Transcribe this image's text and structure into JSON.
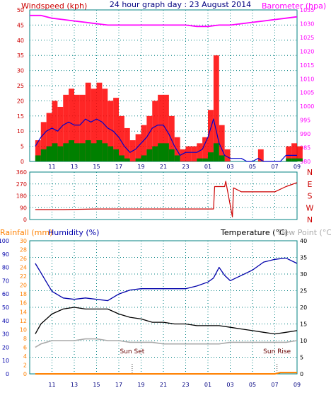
{
  "header": {
    "windspeed_label": "Windspeed (kph)",
    "title": "24 hour graph day : 23 August 2014",
    "barometer_label": "Barometer (hpa)",
    "rainfall_label": "Rainfall (mm)",
    "humidity_label": "Humidity (%)",
    "temperature_label": "Temperature (°C)",
    "dewpoint_label": "Dew Point (°C)",
    "sunset_label": "Sun Set",
    "sunrise_label": "Sun Rise"
  },
  "colors": {
    "wind_avg": "#0000cc",
    "wind_gust": "#ff0000",
    "wind_calm": "#008000",
    "barometer": "#ff00ff",
    "direction": "#cc0000",
    "rainfall": "#ff8000",
    "humidity": "#0000aa",
    "temperature": "#000000",
    "dewpoint": "#aaaaaa",
    "grid": "#008080",
    "left_axis": "#cc0000",
    "right_axis_baro": "#ff00ff",
    "lower_left_axis": "#0000aa",
    "rain_axis": "#ff8000"
  },
  "chart_data": [
    {
      "type": "line",
      "title": "24 hour graph day : 23 August 2014",
      "x_tick_labels": [
        "11",
        "13",
        "15",
        "17",
        "19",
        "21",
        "23",
        "01",
        "03",
        "05",
        "07",
        "09"
      ],
      "y_left_label": "Windspeed (kph)",
      "y_left_ticks": [
        0,
        5,
        10,
        15,
        20,
        25,
        30,
        35,
        40,
        45,
        50
      ],
      "y_left_range": [
        0,
        50
      ],
      "y_right_label": "Barometer (hpa)",
      "y_right_ticks": [
        980,
        985,
        990,
        995,
        1000,
        1005,
        1010,
        1015,
        1020,
        1025,
        1030,
        1035
      ],
      "y_right_range": [
        980,
        1035
      ],
      "grid": true,
      "series": [
        {
          "name": "Windspeed (kph)",
          "hours": [
            9.5,
            10,
            10.5,
            11,
            11.5,
            12,
            12.5,
            13,
            13.5,
            14,
            14.5,
            15,
            15.5,
            16,
            16.5,
            17,
            17.5,
            18,
            18.5,
            19,
            19.5,
            20,
            20.5,
            21,
            21.5,
            22,
            22.5,
            23,
            23.5,
            24,
            24.5,
            25,
            25.5,
            26,
            26.5,
            27,
            27.5,
            28,
            28.5,
            29,
            29.5,
            30,
            30.5,
            31,
            31.5,
            32,
            32.5,
            33
          ],
          "values": [
            7,
            13,
            16,
            20,
            18,
            22,
            24,
            22,
            22,
            26,
            24,
            26,
            24,
            20,
            21,
            15,
            11,
            7,
            9,
            12,
            15,
            20,
            22,
            22,
            15,
            8,
            4,
            5,
            5,
            6,
            8,
            17,
            35,
            12,
            4,
            0,
            0,
            0,
            0,
            0,
            4,
            0,
            0,
            0,
            0,
            5,
            6,
            5
          ]
        },
        {
          "name": "avg",
          "hours": [
            9.5,
            10,
            10.5,
            11,
            11.5,
            12,
            12.5,
            13,
            13.5,
            14,
            14.5,
            15,
            15.5,
            16,
            16.5,
            17,
            17.5,
            18,
            18.5,
            19,
            19.5,
            20,
            20.5,
            21,
            21.5,
            22,
            22.5,
            23,
            23.5,
            24,
            24.5,
            25,
            25.5,
            26,
            26.5,
            27,
            27.5,
            28,
            28.5,
            29,
            29.5,
            30,
            30.5,
            31,
            31.5,
            32,
            32.5,
            33
          ],
          "values": [
            5,
            8,
            10,
            11,
            10,
            12,
            13,
            12,
            12,
            14,
            13,
            14,
            13,
            11,
            10,
            8,
            5,
            3,
            4,
            6,
            8,
            11,
            12,
            12,
            9,
            5,
            2,
            3,
            3,
            3,
            4,
            8,
            14,
            6,
            2,
            1,
            1,
            1,
            0,
            0,
            1,
            0,
            0,
            0,
            0,
            2,
            2,
            2
          ]
        },
        {
          "name": "green",
          "hours": [
            9.5,
            10,
            10.5,
            11,
            11.5,
            12,
            12.5,
            13,
            13.5,
            14,
            14.5,
            15,
            15.5,
            16,
            16.5,
            17,
            17.5,
            18,
            18.5,
            19,
            19.5,
            20,
            20.5,
            21,
            21.5,
            22,
            22.5,
            23,
            23.5,
            24,
            24.5,
            25,
            25.5,
            26,
            26.5,
            27,
            27.5,
            28,
            28.5,
            29,
            29.5,
            30,
            30.5,
            31,
            31.5,
            32,
            32.5,
            33
          ],
          "values": [
            2,
            4,
            5,
            6,
            5,
            6,
            7,
            6,
            6,
            7,
            6,
            7,
            6,
            5,
            4,
            2,
            1,
            0,
            1,
            2,
            4,
            5,
            6,
            6,
            4,
            2,
            0,
            0,
            0,
            1,
            1,
            3,
            6,
            2,
            0,
            0,
            0,
            0,
            0,
            0,
            0,
            0,
            0,
            0,
            0,
            1,
            1,
            1
          ]
        },
        {
          "name": "Barometer (hpa)",
          "hours": [
            9,
            10,
            11,
            12,
            13,
            14,
            15,
            16,
            17,
            18,
            19,
            20,
            21,
            22,
            23,
            24,
            25,
            26,
            27,
            28,
            29,
            30,
            31,
            32,
            33
          ],
          "values": [
            1033,
            1033,
            1032,
            1031.5,
            1031,
            1030.5,
            1030,
            1029.5,
            1029.5,
            1029.5,
            1029.5,
            1029.5,
            1029.5,
            1029.5,
            1029.5,
            1029,
            1029,
            1029.5,
            1029.5,
            1030,
            1030.5,
            1031,
            1031.5,
            1032,
            1032.5
          ]
        }
      ]
    },
    {
      "type": "line",
      "x_tick_labels": [],
      "y_left_ticks": [
        0,
        90,
        180,
        270,
        360
      ],
      "y_left_range": [
        0,
        360
      ],
      "y_right_labels": [
        "N",
        "W",
        "S",
        "E",
        "N"
      ],
      "grid": true,
      "series": [
        {
          "name": "Wind direction",
          "hours": [
            9.5,
            12,
            15,
            18,
            21,
            24,
            25.5,
            25.6,
            26.5,
            26.6,
            27.2,
            27.3,
            28,
            29,
            30,
            31,
            32,
            33
          ],
          "values": [
            75,
            75,
            80,
            80,
            80,
            80,
            80,
            250,
            250,
            290,
            20,
            240,
            210,
            210,
            210,
            210,
            250,
            280
          ]
        }
      ]
    },
    {
      "type": "line",
      "x_tick_labels": [
        "11",
        "13",
        "15",
        "17",
        "19",
        "21",
        "23",
        "01",
        "03",
        "05",
        "07",
        "09"
      ],
      "y_left_label": "Humidity (%)",
      "y_left_ticks": [
        0,
        10,
        20,
        30,
        40,
        50,
        60,
        70,
        80,
        90,
        100
      ],
      "y_left_range": [
        0,
        100
      ],
      "y_rain_label": "Rainfall (mm)",
      "y_rain_ticks": [
        0,
        2,
        4,
        6,
        8,
        10,
        12,
        14,
        16,
        18,
        20,
        22,
        24,
        26,
        28,
        30
      ],
      "y_right_label": "Temperature (°C)",
      "y_right_ticks": [
        0,
        5,
        10,
        15,
        20,
        25,
        30,
        35,
        40
      ],
      "y_right_range": [
        0,
        40
      ],
      "annotations": [
        "Sun Set",
        "Sun Rise"
      ],
      "grid": true,
      "series": [
        {
          "name": "Humidity (%)",
          "hours": [
            9.5,
            10,
            10.5,
            11,
            12,
            13,
            14,
            15,
            16,
            17,
            18,
            19,
            20,
            21,
            22,
            23,
            24,
            25,
            25.5,
            26,
            26.5,
            27,
            28,
            29,
            30,
            31,
            32,
            33
          ],
          "values": [
            83,
            76,
            69,
            62,
            57,
            56,
            57,
            56,
            55,
            60,
            63,
            64,
            64,
            64,
            64,
            64,
            66,
            69,
            72,
            80,
            74,
            70,
            74,
            78,
            84,
            86,
            87,
            83
          ]
        },
        {
          "name": "Temperature (°C)",
          "hours": [
            9.5,
            10,
            11,
            12,
            13,
            14,
            15,
            16,
            17,
            18,
            19,
            20,
            21,
            22,
            23,
            24,
            25,
            26,
            27,
            28,
            29,
            30,
            31,
            32,
            33
          ],
          "values": [
            12,
            15,
            18,
            19.5,
            20,
            19.5,
            19.5,
            19.5,
            18,
            17,
            16.5,
            15.5,
            15.5,
            15,
            15,
            14.5,
            14.5,
            14.5,
            14,
            13.5,
            13,
            12.5,
            12,
            12.5,
            13
          ]
        },
        {
          "name": "Dew Point (°C)",
          "hours": [
            9.5,
            10,
            11,
            12,
            13,
            14,
            15,
            16,
            17,
            18,
            19,
            20,
            21,
            22,
            23,
            24,
            25,
            26,
            27,
            28,
            29,
            30,
            31,
            32,
            33
          ],
          "values": [
            8,
            9,
            10,
            10,
            10,
            10.5,
            10.5,
            10,
            10,
            9.5,
            9.5,
            9.5,
            9,
            9,
            9,
            9,
            9,
            9,
            9.5,
            9.5,
            9.5,
            9.5,
            9.5,
            9.5,
            10
          ]
        },
        {
          "name": "Rainfall (mm)",
          "hours": [
            9.5,
            31,
            31.5,
            33
          ],
          "values": [
            0,
            0,
            0.3,
            0.3
          ]
        }
      ]
    }
  ]
}
